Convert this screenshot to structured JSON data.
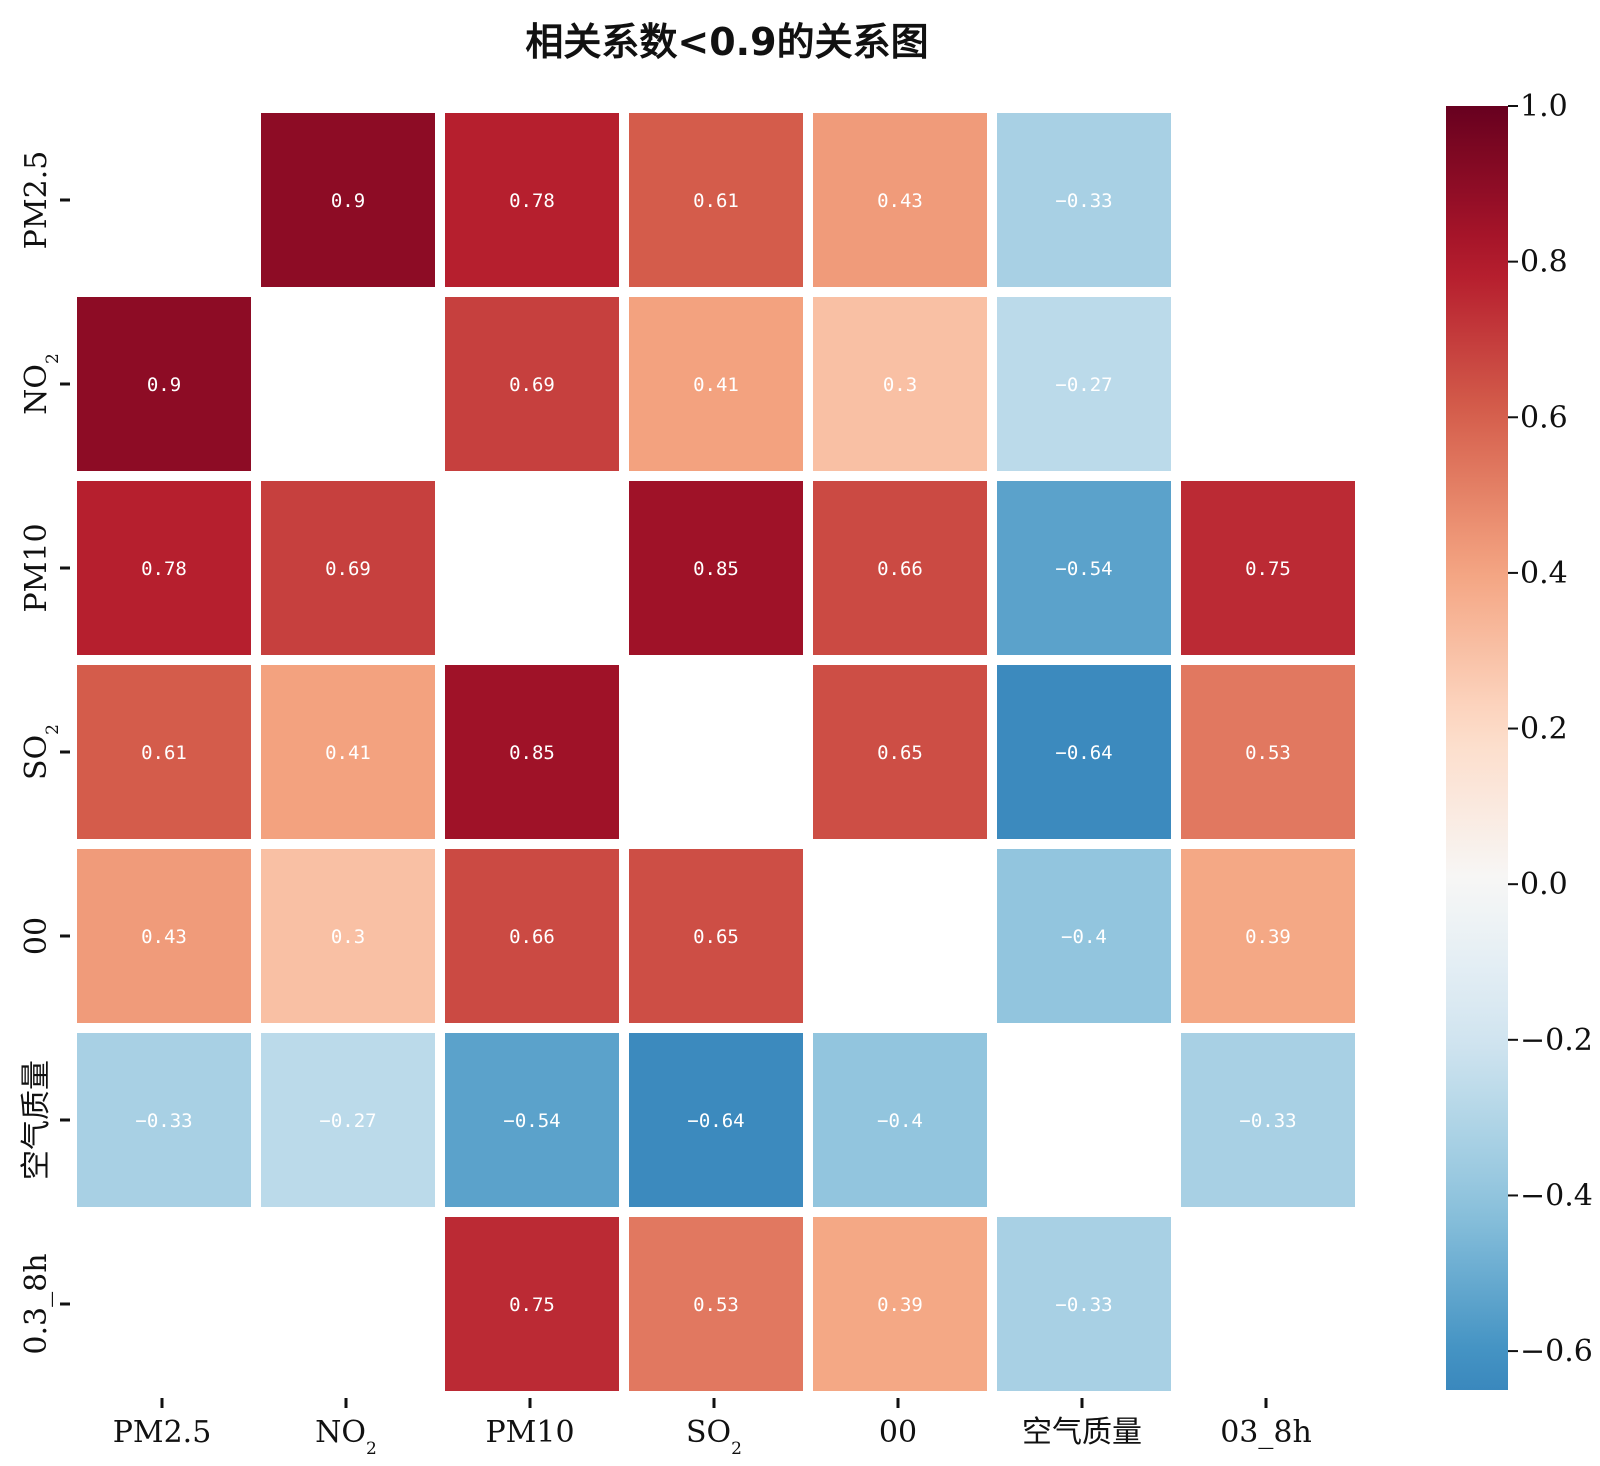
{
  "chart_data": {
    "type": "heatmap",
    "title": "相关系数<0.9的关系图",
    "x_labels": [
      "PM2.5",
      "NO2",
      "PM10",
      "SO2",
      "00",
      "空气质量",
      "03_8h"
    ],
    "y_labels": [
      "PM2.5",
      "NO2",
      "PM10",
      "SO2",
      "00",
      "空气质量",
      "0.3_8h"
    ],
    "x_tick_display": [
      {
        "main": "PM2.5",
        "sub": ""
      },
      {
        "main": "NO",
        "sub": "2"
      },
      {
        "main": "PM10",
        "sub": ""
      },
      {
        "main": "SO",
        "sub": "2"
      },
      {
        "main": "00",
        "sub": ""
      },
      {
        "main": "空气质量",
        "sub": ""
      },
      {
        "main": "03_8h",
        "sub": ""
      }
    ],
    "y_tick_display": [
      {
        "main": "PM2.5",
        "sub": ""
      },
      {
        "main": "NO",
        "sub": "2"
      },
      {
        "main": "PM10",
        "sub": ""
      },
      {
        "main": "SO",
        "sub": "2"
      },
      {
        "main": "00",
        "sub": ""
      },
      {
        "main": "空气质量",
        "sub": ""
      },
      {
        "main": "0.3_8h",
        "sub": ""
      }
    ],
    "matrix": [
      [
        null,
        0.9,
        0.78,
        0.61,
        0.43,
        -0.33,
        null
      ],
      [
        0.9,
        null,
        0.69,
        0.41,
        0.3,
        -0.27,
        null
      ],
      [
        0.78,
        0.69,
        null,
        0.85,
        0.66,
        -0.54,
        0.75
      ],
      [
        0.61,
        0.41,
        0.85,
        null,
        0.65,
        -0.64,
        0.53
      ],
      [
        0.43,
        0.3,
        0.66,
        0.65,
        null,
        -0.4,
        0.39
      ],
      [
        -0.33,
        -0.27,
        -0.54,
        -0.64,
        -0.4,
        null,
        -0.33
      ],
      [
        null,
        null,
        0.75,
        0.53,
        0.39,
        -0.33,
        null
      ]
    ],
    "colorbar": {
      "range": [
        -0.65,
        1.0
      ],
      "ticks": [
        1.0,
        0.8,
        0.6,
        0.4,
        0.2,
        0.0,
        -0.2,
        -0.4,
        -0.6
      ],
      "tick_labels": [
        "1.0",
        "0.8",
        "0.6",
        "0.4",
        "0.2",
        "0.0",
        "−0.2",
        "−0.4",
        "−0.6"
      ],
      "colormap": "RdBu_r"
    }
  }
}
